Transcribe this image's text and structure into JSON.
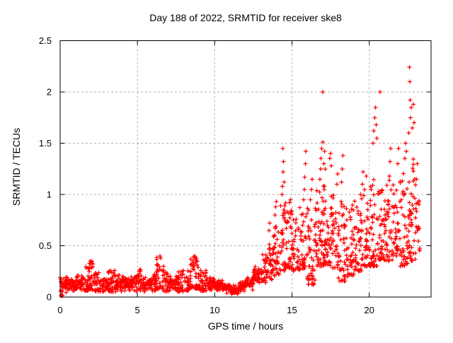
{
  "figure": {
    "background": "#ffffff",
    "text_color": "#000000",
    "border_color": "#000000",
    "grid_color": "#b0b0b0"
  },
  "chart_data": {
    "type": "scatter",
    "title": "Day 188 of 2022, SRMTID for receiver ske8",
    "xlabel": "GPS time / hours",
    "ylabel": "SRMTID / TECUs",
    "xlim": [
      0,
      24
    ],
    "ylim": [
      0,
      2.5
    ],
    "xticks": [
      0,
      5,
      10,
      15,
      20
    ],
    "yticks": [
      0,
      0.5,
      1,
      1.5,
      2,
      2.5
    ],
    "grid": true,
    "legend": "none",
    "marker": "plus",
    "marker_color": "#ff0000",
    "series_name": "SRMTID",
    "seed": 188,
    "density_bins": [
      [
        0.0,
        0.5,
        0.03,
        0.22,
        40,
        0
      ],
      [
        0.5,
        1.0,
        0.04,
        0.2,
        40,
        0
      ],
      [
        1.0,
        1.5,
        0.05,
        0.22,
        40,
        0
      ],
      [
        1.5,
        1.8,
        0.06,
        0.3,
        25,
        1
      ],
      [
        1.8,
        2.2,
        0.07,
        0.36,
        35,
        1
      ],
      [
        2.2,
        2.6,
        0.05,
        0.25,
        28,
        1
      ],
      [
        2.6,
        3.1,
        0.04,
        0.2,
        40,
        0
      ],
      [
        3.1,
        3.6,
        0.05,
        0.26,
        40,
        1
      ],
      [
        3.6,
        4.1,
        0.05,
        0.22,
        40,
        0
      ],
      [
        4.1,
        4.6,
        0.04,
        0.19,
        40,
        0
      ],
      [
        4.6,
        5.0,
        0.05,
        0.22,
        32,
        0
      ],
      [
        5.0,
        5.3,
        0.06,
        0.28,
        22,
        1
      ],
      [
        5.3,
        6.0,
        0.04,
        0.19,
        52,
        0
      ],
      [
        6.0,
        6.2,
        0.06,
        0.26,
        15,
        1
      ],
      [
        6.2,
        6.7,
        0.08,
        0.4,
        38,
        1
      ],
      [
        6.7,
        7.0,
        0.05,
        0.24,
        22,
        1
      ],
      [
        7.0,
        7.6,
        0.05,
        0.22,
        45,
        0
      ],
      [
        7.6,
        8.1,
        0.05,
        0.26,
        38,
        1
      ],
      [
        8.1,
        8.45,
        0.06,
        0.26,
        26,
        1
      ],
      [
        8.45,
        9.0,
        0.08,
        0.4,
        42,
        1
      ],
      [
        9.0,
        9.5,
        0.06,
        0.26,
        38,
        1
      ],
      [
        9.5,
        10.0,
        0.05,
        0.2,
        38,
        0
      ],
      [
        10.0,
        10.5,
        0.04,
        0.18,
        38,
        0
      ],
      [
        10.5,
        11.0,
        0.03,
        0.15,
        38,
        0
      ],
      [
        11.0,
        11.6,
        0.02,
        0.12,
        45,
        0
      ],
      [
        11.6,
        12.0,
        0.04,
        0.16,
        30,
        0
      ],
      [
        12.0,
        12.5,
        0.06,
        0.22,
        38,
        0
      ],
      [
        12.5,
        13.0,
        0.1,
        0.3,
        38,
        0
      ],
      [
        13.0,
        13.4,
        0.14,
        0.42,
        30,
        1
      ],
      [
        13.4,
        13.8,
        0.17,
        0.6,
        30,
        1
      ],
      [
        13.8,
        14.2,
        0.2,
        0.7,
        32,
        1
      ],
      [
        14.2,
        14.6,
        0.25,
        0.95,
        32,
        1
      ],
      [
        14.6,
        15.0,
        0.28,
        0.85,
        36,
        1
      ],
      [
        15.0,
        15.5,
        0.25,
        0.8,
        40,
        1
      ],
      [
        15.5,
        16.0,
        0.28,
        0.9,
        40,
        1
      ],
      [
        16.0,
        16.5,
        0.12,
        0.9,
        45,
        1
      ],
      [
        16.5,
        17.0,
        0.3,
        1.1,
        45,
        1
      ],
      [
        17.0,
        17.5,
        0.3,
        1.1,
        45,
        1
      ],
      [
        17.5,
        18.0,
        0.28,
        1.0,
        40,
        1
      ],
      [
        18.0,
        18.5,
        0.15,
        0.95,
        40,
        1
      ],
      [
        18.5,
        19.0,
        0.2,
        0.9,
        40,
        1
      ],
      [
        19.0,
        19.5,
        0.25,
        0.95,
        40,
        1
      ],
      [
        19.5,
        20.0,
        0.3,
        1.0,
        40,
        1
      ],
      [
        20.0,
        20.5,
        0.3,
        1.15,
        42,
        1
      ],
      [
        20.5,
        21.0,
        0.35,
        1.05,
        42,
        1
      ],
      [
        21.0,
        21.5,
        0.35,
        1.2,
        40,
        1
      ],
      [
        21.5,
        22.0,
        0.4,
        1.15,
        40,
        1
      ],
      [
        22.0,
        22.5,
        0.3,
        1.25,
        40,
        1
      ],
      [
        22.5,
        23.0,
        0.35,
        1.4,
        45,
        1
      ],
      [
        23.0,
        23.3,
        0.45,
        0.95,
        18,
        1
      ]
    ],
    "highlight_points": [
      [
        0.06,
        0.01
      ],
      [
        0.1,
        0.02
      ],
      [
        0.15,
        0.015
      ],
      [
        2.0,
        0.33
      ],
      [
        2.05,
        0.35
      ],
      [
        6.45,
        0.4
      ],
      [
        6.5,
        0.38
      ],
      [
        8.7,
        0.4
      ],
      [
        8.75,
        0.37
      ],
      [
        13.5,
        0.65
      ],
      [
        13.55,
        0.72
      ],
      [
        13.9,
        0.8
      ],
      [
        13.95,
        0.88
      ],
      [
        14.0,
        0.93
      ],
      [
        14.35,
        1.0
      ],
      [
        14.38,
        1.08
      ],
      [
        14.42,
        1.22
      ],
      [
        14.45,
        1.32
      ],
      [
        14.5,
        1.12
      ],
      [
        14.4,
        1.45
      ],
      [
        14.85,
        0.92
      ],
      [
        14.9,
        0.95
      ],
      [
        15.75,
        0.95
      ],
      [
        15.8,
        1.05
      ],
      [
        15.83,
        1.17
      ],
      [
        15.87,
        1.3
      ],
      [
        15.9,
        1.42
      ],
      [
        16.2,
        0.95
      ],
      [
        16.25,
        1.05
      ],
      [
        16.3,
        1.15
      ],
      [
        16.8,
        1.15
      ],
      [
        16.85,
        1.25
      ],
      [
        16.88,
        1.35
      ],
      [
        16.92,
        1.45
      ],
      [
        17.0,
        2.0
      ],
      [
        17.0,
        1.51
      ],
      [
        17.05,
        1.3
      ],
      [
        17.1,
        1.42
      ],
      [
        17.15,
        1.25
      ],
      [
        17.45,
        1.35
      ],
      [
        17.5,
        1.4
      ],
      [
        17.55,
        1.28
      ],
      [
        17.9,
        1.1
      ],
      [
        17.95,
        1.2
      ],
      [
        18.2,
        1.12
      ],
      [
        18.25,
        1.25
      ],
      [
        18.3,
        1.38
      ],
      [
        19.45,
        1.0
      ],
      [
        19.55,
        1.1
      ],
      [
        19.6,
        1.22
      ],
      [
        19.7,
        1.05
      ],
      [
        19.8,
        1.18
      ],
      [
        20.25,
        1.5
      ],
      [
        20.3,
        1.62
      ],
      [
        20.35,
        1.75
      ],
      [
        20.4,
        1.85
      ],
      [
        20.45,
        1.68
      ],
      [
        20.5,
        1.55
      ],
      [
        20.7,
        2.0
      ],
      [
        21.3,
        1.18
      ],
      [
        21.35,
        1.32
      ],
      [
        21.4,
        1.45
      ],
      [
        21.85,
        1.3
      ],
      [
        21.9,
        1.45
      ],
      [
        22.3,
        1.35
      ],
      [
        22.35,
        1.5
      ],
      [
        22.4,
        1.42
      ],
      [
        22.55,
        1.6
      ],
      [
        22.6,
        2.24
      ],
      [
        22.62,
        2.1
      ],
      [
        22.65,
        1.92
      ],
      [
        22.68,
        1.75
      ],
      [
        22.72,
        1.85
      ],
      [
        22.78,
        1.65
      ],
      [
        22.85,
        1.88
      ],
      [
        22.9,
        1.7
      ],
      [
        23.05,
        1.15
      ],
      [
        23.1,
        1.3
      ]
    ]
  }
}
